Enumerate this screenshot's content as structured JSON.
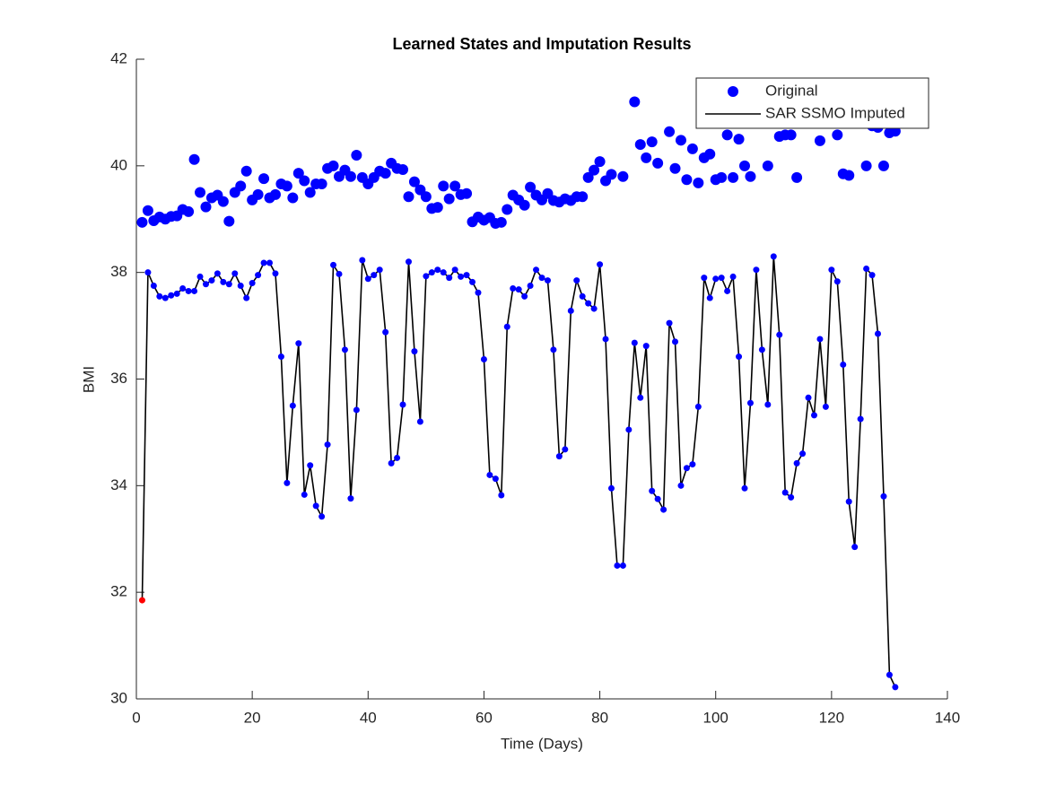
{
  "chart_data": {
    "type": "line",
    "title": "Learned States and Imputation Results",
    "xlabel": "Time (Days)",
    "ylabel": "BMI",
    "x": [
      1,
      2,
      3,
      4,
      5,
      6,
      7,
      8,
      9,
      10,
      11,
      12,
      13,
      14,
      15,
      16,
      17,
      18,
      19,
      20,
      21,
      22,
      23,
      24,
      25,
      26,
      27,
      28,
      29,
      30,
      31,
      32,
      33,
      34,
      35,
      36,
      37,
      38,
      39,
      40,
      41,
      42,
      43,
      44,
      45,
      46,
      47,
      48,
      49,
      50,
      51,
      52,
      53,
      54,
      55,
      56,
      57,
      58,
      59,
      60,
      61,
      62,
      63,
      64,
      65,
      66,
      67,
      68,
      69,
      70,
      71,
      72,
      73,
      74,
      75,
      76,
      77,
      78,
      79,
      80,
      81,
      82,
      83,
      84,
      85,
      86,
      87,
      88,
      89,
      90,
      91,
      92,
      93,
      94,
      95,
      96,
      97,
      98,
      99,
      100,
      101,
      102,
      103,
      104,
      105,
      106,
      107,
      108,
      109,
      110,
      111,
      112,
      113,
      114,
      115,
      116,
      117,
      118,
      119,
      120,
      121,
      122,
      123,
      124,
      125,
      126,
      127,
      128,
      129,
      130,
      131
    ],
    "series": [
      {
        "name": "Original",
        "color": "#0000ff",
        "style": "marker",
        "values": [
          38.94,
          39.16,
          38.97,
          39.04,
          39.0,
          39.05,
          39.06,
          39.18,
          39.14,
          40.12,
          39.5,
          39.23,
          39.4,
          39.45,
          39.33,
          38.96,
          39.5,
          39.62,
          39.9,
          39.36,
          39.46,
          39.76,
          39.4,
          39.46,
          39.66,
          39.62,
          39.4,
          39.86,
          39.72,
          39.5,
          39.66,
          39.66,
          39.95,
          40.0,
          39.8,
          39.92,
          39.8,
          40.2,
          39.78,
          39.66,
          39.78,
          39.9,
          39.86,
          40.05,
          39.95,
          39.93,
          39.42,
          39.7,
          39.55,
          39.42,
          39.2,
          39.22,
          39.62,
          39.38,
          39.62,
          39.46,
          39.48,
          38.95,
          39.04,
          38.98,
          39.03,
          38.92,
          38.94,
          39.18,
          39.45,
          39.36,
          39.26,
          39.6,
          39.45,
          39.36,
          39.48,
          39.35,
          39.32,
          39.38,
          39.35,
          39.42,
          39.42,
          39.78,
          39.92,
          40.08,
          39.72,
          39.84,
          null,
          39.8,
          null,
          41.2,
          40.4,
          40.15,
          40.45,
          40.05,
          null,
          40.64,
          39.95,
          40.48,
          39.74,
          40.32,
          39.68,
          40.15,
          40.22,
          39.74,
          39.78,
          40.58,
          39.78,
          40.5,
          40.0,
          39.8,
          40.85,
          null,
          40.0,
          null,
          40.55,
          40.58,
          40.58,
          39.78,
          null,
          null,
          null,
          40.47,
          null,
          null,
          40.58,
          39.85,
          39.82,
          null,
          null,
          40.0,
          40.75,
          40.72,
          40.0,
          40.62,
          40.65
        ]
      },
      {
        "name": "SAR SSMO Imputed",
        "color": "#000000",
        "marker_color": "#0000ff",
        "highlight_index": 0,
        "highlight_color": "#ff0000",
        "style": "line",
        "values": [
          31.85,
          38.0,
          37.75,
          37.55,
          37.52,
          37.57,
          37.6,
          37.7,
          37.65,
          37.65,
          37.92,
          37.78,
          37.85,
          37.98,
          37.82,
          37.78,
          37.98,
          37.75,
          37.52,
          37.8,
          37.95,
          38.18,
          38.18,
          37.98,
          36.42,
          34.05,
          35.5,
          36.67,
          33.83,
          34.38,
          33.62,
          33.42,
          34.77,
          38.14,
          37.97,
          36.55,
          33.76,
          35.42,
          38.23,
          37.88,
          37.95,
          38.05,
          36.88,
          34.42,
          34.52,
          35.52,
          38.2,
          36.52,
          35.2,
          37.93,
          38.0,
          38.05,
          38.0,
          37.9,
          38.05,
          37.92,
          37.95,
          37.82,
          37.62,
          36.37,
          34.2,
          34.13,
          33.82,
          36.98,
          37.7,
          37.68,
          37.55,
          37.75,
          38.05,
          37.9,
          37.85,
          36.55,
          34.55,
          34.68,
          37.28,
          37.85,
          37.55,
          37.42,
          37.32,
          38.15,
          36.75,
          33.95,
          32.5,
          32.5,
          35.05,
          36.68,
          35.65,
          36.62,
          33.9,
          33.75,
          33.55,
          37.05,
          36.7,
          34.0,
          34.33,
          34.4,
          35.48,
          37.9,
          37.52,
          37.88,
          37.9,
          37.65,
          37.92,
          36.42,
          33.95,
          35.55,
          38.05,
          36.55,
          35.52,
          38.3,
          36.83,
          33.87,
          33.78,
          34.42,
          34.6,
          35.65,
          35.32,
          36.75,
          35.48,
          38.05,
          37.83,
          36.27,
          33.7,
          32.85,
          35.25,
          38.07,
          37.95,
          36.85,
          33.8,
          30.45,
          30.22
        ]
      }
    ],
    "xlim": [
      0,
      140
    ],
    "xticks": [
      0,
      20,
      40,
      60,
      80,
      100,
      120,
      140
    ],
    "ylim": [
      30,
      42
    ],
    "yticks": [
      30,
      32,
      34,
      36,
      38,
      40,
      42
    ],
    "grid": false,
    "legend": "northeast"
  }
}
